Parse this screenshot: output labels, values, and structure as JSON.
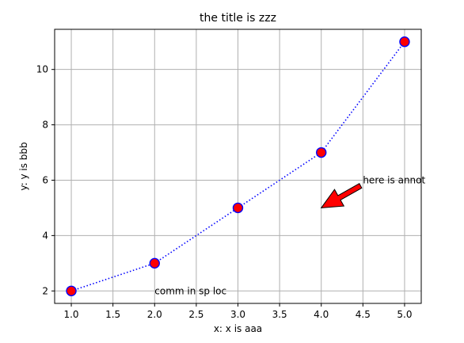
{
  "chart_data": {
    "type": "line",
    "title": "the title is zzz",
    "xlabel": "x: x is aaa",
    "ylabel": "y: y is bbb",
    "x": [
      1,
      2,
      3,
      4,
      5
    ],
    "series": [
      {
        "values": [
          2,
          3,
          5,
          7,
          11
        ],
        "line_style": "dotted",
        "line_color": "#0000ff",
        "marker": "circle",
        "marker_face_color": "#ff0000",
        "marker_edge_color": "#0000ff"
      }
    ],
    "xlim": [
      0.8,
      5.2
    ],
    "ylim": [
      1.55,
      11.45
    ],
    "xticks": [
      1.0,
      1.5,
      2.0,
      2.5,
      3.0,
      3.5,
      4.0,
      4.5,
      5.0
    ],
    "xtick_labels": [
      "1.0",
      "1.5",
      "2.0",
      "2.5",
      "3.0",
      "3.5",
      "4.0",
      "4.5",
      "5.0"
    ],
    "yticks": [
      2,
      4,
      6,
      8,
      10
    ],
    "ytick_labels": [
      "2",
      "4",
      "6",
      "8",
      "10"
    ],
    "grid": true,
    "annotations": [
      {
        "text": "here is annot",
        "x": 4.5,
        "y": 6.0,
        "arrow_to": [
          4.0,
          5.0
        ],
        "arrow_color": "#ff0000"
      },
      {
        "text": "comm in sp loc",
        "x": 2.0,
        "y": 2.0
      }
    ]
  }
}
